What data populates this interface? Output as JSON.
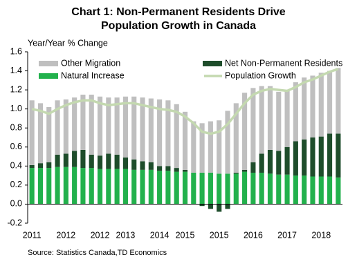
{
  "chart_data": {
    "type": "stacked_bar_line",
    "title": [
      "Chart 1: Non-Permanent Residents Drive",
      "Population Growth in Canada"
    ],
    "y_label": "Year/Year % Change",
    "source": "Source:  Statistics Canada,TD   Economics",
    "categories": [
      "2011",
      null,
      null,
      null,
      "2012",
      null,
      null,
      null,
      "2012",
      null,
      null,
      "2013",
      null,
      null,
      null,
      "2014",
      null,
      null,
      "2015",
      null,
      null,
      null,
      "2015",
      null,
      null,
      null,
      "2016",
      null,
      null,
      null,
      "2017",
      null,
      null,
      null,
      "2018",
      null,
      null
    ],
    "series": [
      {
        "name": "Other Migration",
        "type": "bar",
        "color": "#bfbfbf",
        "values": [
          0.68,
          0.63,
          0.58,
          0.57,
          0.57,
          0.56,
          0.58,
          0.63,
          0.62,
          0.59,
          0.6,
          0.64,
          0.66,
          0.67,
          0.67,
          0.7,
          0.69,
          0.67,
          0.61,
          0.54,
          0.52,
          0.54,
          0.56,
          0.66,
          0.73,
          0.81,
          0.78,
          0.71,
          0.67,
          0.62,
          0.59,
          0.62,
          0.65,
          0.65,
          0.67,
          0.66,
          0.69
        ]
      },
      {
        "name": "Net Non-Permanent Residents",
        "type": "bar",
        "color": "#1e4d2b",
        "values": [
          0.03,
          0.05,
          0.06,
          0.13,
          0.14,
          0.17,
          0.19,
          0.14,
          0.14,
          0.16,
          0.15,
          0.12,
          0.11,
          0.09,
          0.08,
          0.05,
          0.05,
          0.04,
          0.02,
          0.0,
          -0.02,
          -0.05,
          -0.08,
          -0.05,
          0.01,
          0.02,
          0.11,
          0.2,
          0.25,
          0.25,
          0.29,
          0.36,
          0.38,
          0.41,
          0.42,
          0.45,
          0.46
        ]
      },
      {
        "name": "Natural Increase",
        "type": "bar",
        "color": "#22b14c",
        "values": [
          0.38,
          0.38,
          0.38,
          0.39,
          0.39,
          0.39,
          0.38,
          0.38,
          0.37,
          0.37,
          0.37,
          0.37,
          0.36,
          0.36,
          0.36,
          0.35,
          0.35,
          0.34,
          0.34,
          0.33,
          0.33,
          0.33,
          0.32,
          0.32,
          0.32,
          0.34,
          0.33,
          0.33,
          0.32,
          0.31,
          0.31,
          0.3,
          0.3,
          0.29,
          0.29,
          0.29,
          0.28
        ]
      },
      {
        "name": "Population Growth",
        "type": "line",
        "color": "#c4d9b0",
        "values": [
          1.0,
          0.98,
          0.95,
          1.0,
          1.04,
          1.07,
          1.09,
          1.09,
          1.06,
          1.04,
          1.05,
          1.06,
          1.06,
          1.04,
          1.02,
          1.0,
          0.99,
          0.97,
          0.92,
          0.85,
          0.76,
          0.74,
          0.76,
          0.84,
          0.95,
          1.06,
          1.15,
          1.19,
          1.21,
          1.2,
          1.19,
          1.23,
          1.28,
          1.31,
          1.35,
          1.39,
          1.42
        ]
      }
    ],
    "ylim": [
      -0.2,
      1.6
    ],
    "yticks": [
      {
        "value": -0.2,
        "label": "-0.2"
      },
      {
        "value": 0,
        "label": "0.0"
      },
      {
        "value": 0.2,
        "label": "0.2"
      },
      {
        "value": 0.4,
        "label": "0.4"
      },
      {
        "value": 0.6,
        "label": "0.6"
      },
      {
        "value": 0.8,
        "label": "0.8"
      },
      {
        "value": 1,
        "label": "1.0"
      },
      {
        "value": 1.2,
        "label": "1.2"
      },
      {
        "value": 1.4,
        "label": "1.4"
      },
      {
        "value": 1.6,
        "label": "1.6"
      }
    ],
    "legend": "top",
    "grid": false
  }
}
